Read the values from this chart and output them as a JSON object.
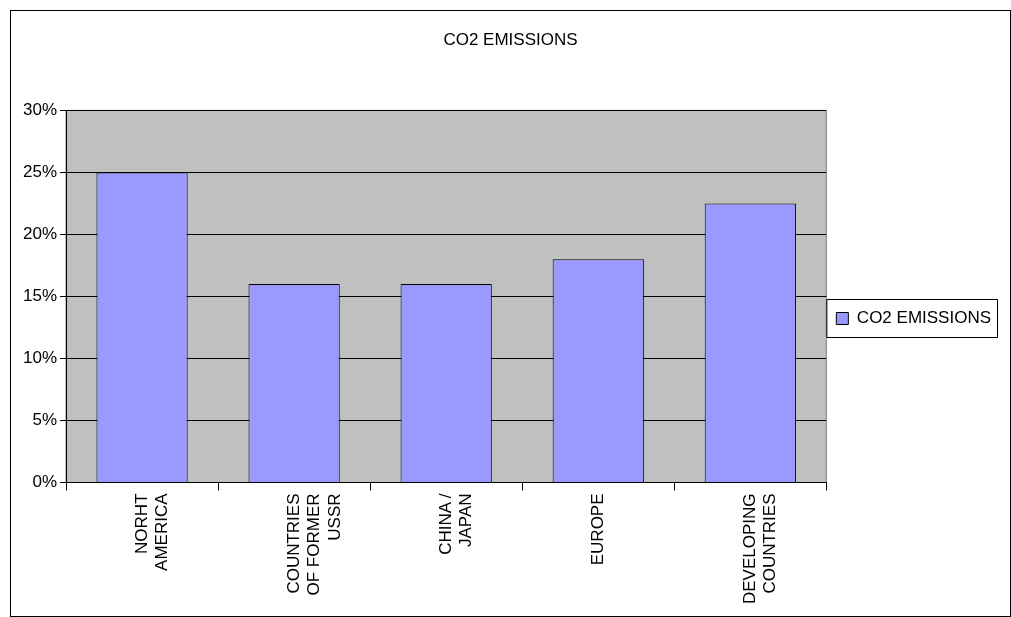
{
  "chart_data": {
    "type": "bar",
    "title": "CO2 EMISSIONS",
    "categories": [
      "NORHT AMERICA",
      "COUNTRIES OF FORMER USSR",
      "CHINA / JAPAN",
      "EUROPE",
      "DEVELOPING COUNTRIES"
    ],
    "series": [
      {
        "name": "CO2 EMISSIONS",
        "color": "#9999ff",
        "values": [
          25,
          16,
          16,
          18,
          22.5
        ]
      }
    ],
    "ylim": [
      0,
      30
    ],
    "yticks": [
      {
        "value": 0,
        "label": "0%"
      },
      {
        "value": 5,
        "label": "5%"
      },
      {
        "value": 10,
        "label": "10%"
      },
      {
        "value": 15,
        "label": "15%"
      },
      {
        "value": 20,
        "label": "20%"
      },
      {
        "value": 25,
        "label": "25%"
      },
      {
        "value": 30,
        "label": "30%"
      }
    ],
    "grid": "y",
    "legend": "right"
  }
}
